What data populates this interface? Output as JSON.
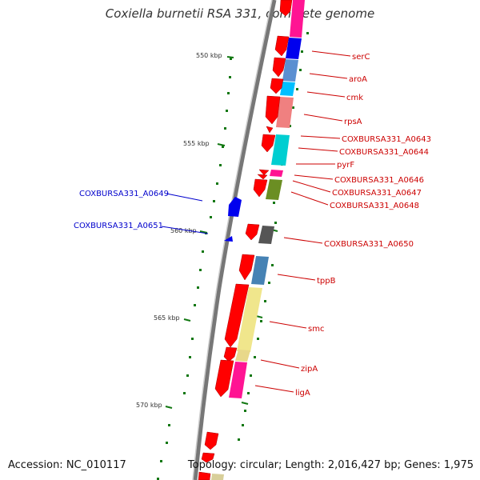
{
  "title": "Coxiella burnetii RSA 331, complete genome",
  "footer": {
    "accession": "Accession: NC_010117",
    "summary": "Topology: circular; Length: 2,016,427 bp; Genes: 1,975"
  },
  "colors": {
    "backbone": "#888888",
    "gene_forward": "#ff0000",
    "gene_reverse": "#0000ee",
    "label_forward": "#cc0000",
    "label_reverse": "#0000cc",
    "tick": "#117711"
  },
  "ticks": [
    "550 kbp",
    "555 kbp",
    "560 kbp",
    "565 kbp",
    "570 kbp"
  ],
  "genes_forward": [
    "serC",
    "aroA",
    "cmk",
    "rpsA",
    "COXBURSA331_A0643",
    "COXBURSA331_A0644",
    "pyrF",
    "COXBURSA331_A0646",
    "COXBURSA331_A0647",
    "COXBURSA331_A0648",
    "COXBURSA331_A0650",
    "tppB",
    "smc",
    "zipA",
    "ligA"
  ],
  "genes_reverse": [
    "COXBURSA331_A0649",
    "COXBURSA331_A0651"
  ]
}
